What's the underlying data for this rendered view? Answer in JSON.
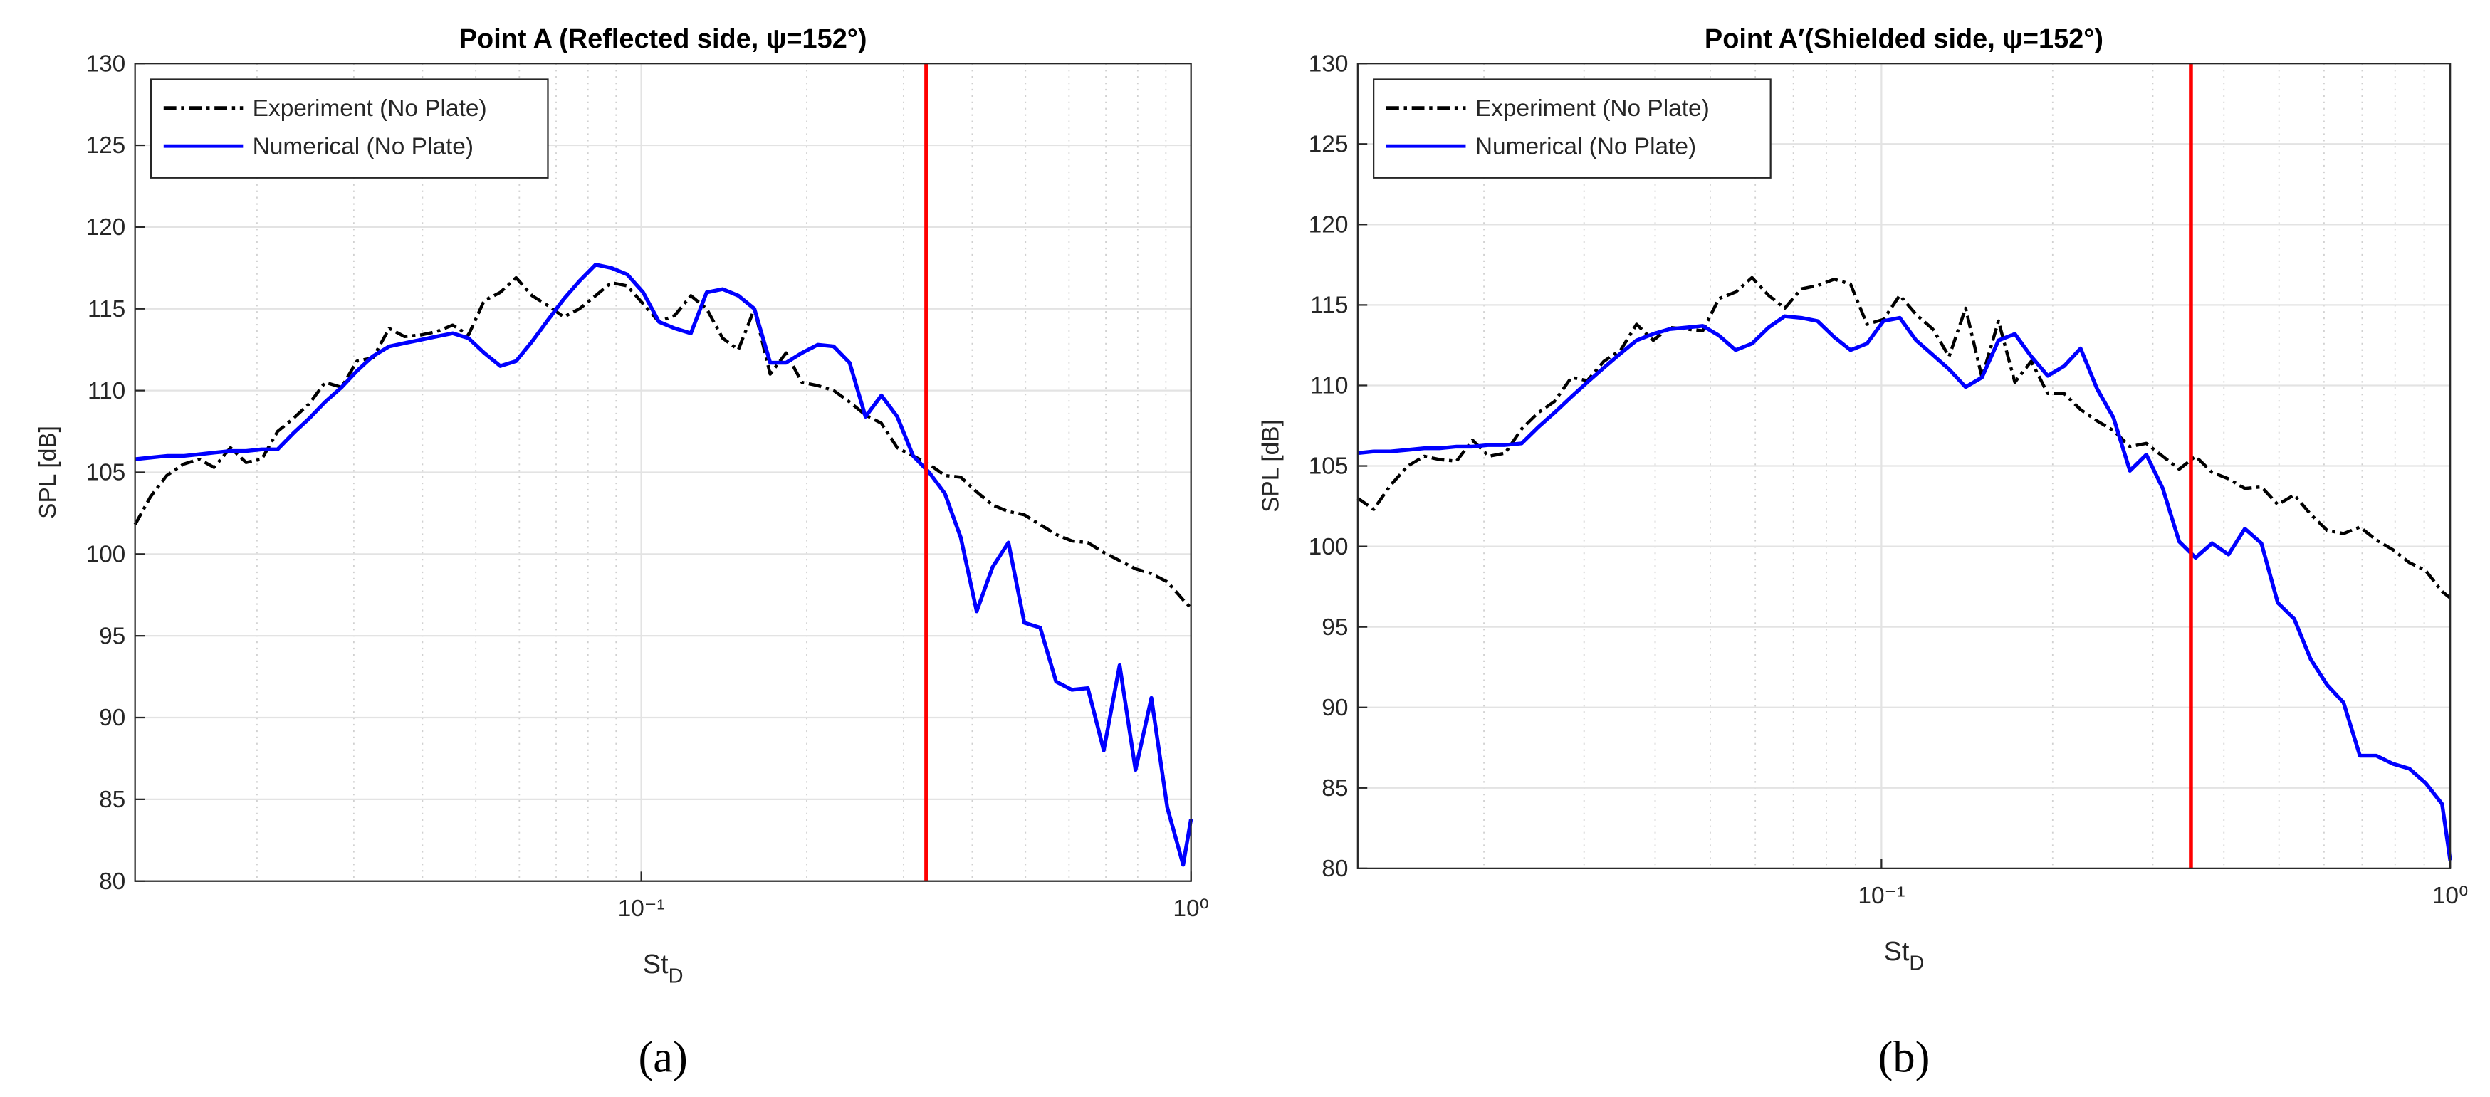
{
  "chart_data": [
    {
      "type": "line",
      "title": "Point A (Reflected side, ψ=152°)",
      "xlabel": [
        "St",
        "D"
      ],
      "ylabel": "SPL [dB]",
      "panel_label": "(a)",
      "xscale": "log",
      "xlim": [
        0.012,
        1
      ],
      "xticks": [
        {
          "value": 0.1,
          "label": "10⁻¹"
        },
        {
          "value": 1,
          "label": "10⁰"
        }
      ],
      "ylim": [
        80,
        130
      ],
      "yticks": [
        80,
        85,
        90,
        95,
        100,
        105,
        110,
        115,
        120,
        125,
        130
      ],
      "grid": true,
      "minor_grid": true,
      "legend": "upper left",
      "vline": {
        "x": 0.33,
        "color": "#ff0000"
      },
      "x": [
        0.012,
        0.0128,
        0.0137,
        0.0147,
        0.0157,
        0.0167,
        0.0179,
        0.0191,
        0.0204,
        0.0218,
        0.0233,
        0.0249,
        0.0266,
        0.0285,
        0.0304,
        0.0325,
        0.0348,
        0.0371,
        0.0397,
        0.0424,
        0.0454,
        0.0485,
        0.0518,
        0.0554,
        0.0592,
        0.0633,
        0.0676,
        0.0723,
        0.0772,
        0.0826,
        0.0882,
        0.0943,
        0.1008,
        0.1077,
        0.1151,
        0.1231,
        0.1315,
        0.1406,
        0.1502,
        0.1606,
        0.1716,
        0.1834,
        0.196,
        0.2095,
        0.2239,
        0.2393,
        0.2558,
        0.2734,
        0.2922,
        0.3123,
        0.3338,
        0.3567,
        0.3813,
        0.4075,
        0.4355,
        0.4655,
        0.4975,
        0.5317,
        0.5683,
        0.6074,
        0.6492,
        0.6938,
        0.7416,
        0.7926,
        0.8471,
        0.9054,
        0.9676,
        1
      ],
      "series": [
        {
          "name": "Experiment (No Plate)",
          "color": "#000000",
          "dash": "dashdot",
          "values": [
            101.8,
            103.5,
            104.8,
            105.5,
            105.8,
            105.3,
            106.5,
            105.6,
            105.8,
            107.5,
            108.3,
            109.2,
            110.5,
            110.2,
            111.8,
            112,
            113.8,
            113.3,
            113.4,
            113.6,
            114,
            113.4,
            115.5,
            116,
            116.9,
            115.8,
            115.2,
            114.5,
            115,
            115.8,
            116.6,
            116.4,
            115.3,
            114.2,
            114.6,
            115.8,
            115,
            113.2,
            112.5,
            115,
            111,
            112.3,
            110.5,
            110.3,
            110,
            109.3,
            108.5,
            108,
            106.5,
            106,
            105.5,
            104.8,
            104.7,
            103.8,
            103,
            102.6,
            102.4,
            101.8,
            101.2,
            100.8,
            100.7,
            100.1,
            99.6,
            99.1,
            98.8,
            98.3,
            97.2,
            96.7
          ]
        },
        {
          "name": "Numerical (No Plate)",
          "color": "#0000ff",
          "dash": "solid",
          "values": [
            105.8,
            105.9,
            106,
            106,
            106.1,
            106.2,
            106.3,
            106.3,
            106.4,
            106.4,
            107.4,
            108.3,
            109.3,
            110.2,
            111.2,
            112.1,
            112.7,
            112.9,
            113.1,
            113.3,
            113.5,
            113.2,
            112.3,
            111.5,
            111.8,
            113,
            114.3,
            115.6,
            116.7,
            117.7,
            117.5,
            117.1,
            116,
            114.2,
            113.8,
            113.5,
            116,
            116.2,
            115.8,
            115,
            111.7,
            111.7,
            112.3,
            112.8,
            112.7,
            111.7,
            108.4,
            109.7,
            108.4,
            106,
            105,
            103.7,
            101,
            96.5,
            99.2,
            100.7,
            95.8,
            95.5,
            92.2,
            91.7,
            91.8,
            88,
            93.2,
            86.8,
            91.2,
            84.5,
            81,
            83.8
          ]
        }
      ]
    },
    {
      "type": "line",
      "title": "Point A′(Shielded side, ψ=152°)",
      "xlabel": [
        "St",
        "D"
      ],
      "ylabel": "SPL [dB]",
      "panel_label": "(b)",
      "xscale": "log",
      "xlim": [
        0.012,
        1
      ],
      "xticks": [
        {
          "value": 0.1,
          "label": "10⁻¹"
        },
        {
          "value": 1,
          "label": "10⁰"
        }
      ],
      "ylim": [
        80,
        130
      ],
      "yticks": [
        80,
        85,
        90,
        95,
        100,
        105,
        110,
        115,
        120,
        125,
        130
      ],
      "grid": true,
      "minor_grid": true,
      "legend": "upper left",
      "vline": {
        "x": 0.35,
        "color": "#ff0000"
      },
      "x": [
        0.012,
        0.0128,
        0.0137,
        0.0147,
        0.0157,
        0.0167,
        0.0179,
        0.0191,
        0.0204,
        0.0218,
        0.0233,
        0.0249,
        0.0266,
        0.0285,
        0.0304,
        0.0325,
        0.0348,
        0.0371,
        0.0397,
        0.0424,
        0.0454,
        0.0485,
        0.0518,
        0.0554,
        0.0592,
        0.0633,
        0.0676,
        0.0723,
        0.0772,
        0.0826,
        0.0882,
        0.0943,
        0.1008,
        0.1077,
        0.1151,
        0.1231,
        0.1315,
        0.1406,
        0.1502,
        0.1606,
        0.1716,
        0.1834,
        0.196,
        0.2095,
        0.2239,
        0.2393,
        0.2558,
        0.2734,
        0.2922,
        0.3123,
        0.3338,
        0.3567,
        0.3813,
        0.4075,
        0.4355,
        0.4655,
        0.4975,
        0.5317,
        0.5683,
        0.6074,
        0.6492,
        0.6938,
        0.7416,
        0.7926,
        0.8471,
        0.9054,
        0.9676,
        1
      ],
      "series": [
        {
          "name": "Experiment (No Plate)",
          "color": "#000000",
          "dash": "dashdot",
          "values": [
            103,
            102.3,
            103.8,
            105,
            105.6,
            105.4,
            105.3,
            106.6,
            105.6,
            105.8,
            107.3,
            108.3,
            109,
            110.5,
            110.3,
            111.5,
            112.2,
            113.8,
            112.8,
            113.6,
            113.5,
            113.4,
            115.4,
            115.8,
            116.7,
            115.6,
            114.8,
            116,
            116.2,
            116.6,
            116.3,
            113.8,
            114.1,
            115.6,
            114.4,
            113.5,
            111.8,
            114.8,
            110.5,
            114,
            110.2,
            111.5,
            109.5,
            109.5,
            108.5,
            107.8,
            107.2,
            106.2,
            106.4,
            105.6,
            104.8,
            105.6,
            104.6,
            104.2,
            103.6,
            103.7,
            102.6,
            103.2,
            102,
            101,
            100.8,
            101.2,
            100.4,
            99.8,
            99,
            98.5,
            97.2,
            96.8
          ]
        },
        {
          "name": "Numerical (No Plate)",
          "color": "#0000ff",
          "dash": "solid",
          "values": [
            105.8,
            105.9,
            105.9,
            106,
            106.1,
            106.1,
            106.2,
            106.2,
            106.3,
            106.3,
            106.4,
            107.4,
            108.3,
            109.3,
            110.2,
            111.1,
            112,
            112.8,
            113.2,
            113.5,
            113.6,
            113.7,
            113.1,
            112.2,
            112.6,
            113.6,
            114.3,
            114.2,
            114,
            113,
            112.2,
            112.6,
            114,
            114.2,
            112.8,
            111.9,
            111,
            109.9,
            110.5,
            112.8,
            113.2,
            111.8,
            110.6,
            111.2,
            112.3,
            109.8,
            108,
            104.7,
            105.7,
            103.6,
            100.3,
            99.3,
            100.2,
            99.5,
            101.1,
            100.2,
            96.5,
            95.5,
            93,
            91.4,
            90.3,
            87,
            87,
            86.5,
            86.2,
            85.3,
            84,
            80.5
          ]
        }
      ]
    }
  ]
}
